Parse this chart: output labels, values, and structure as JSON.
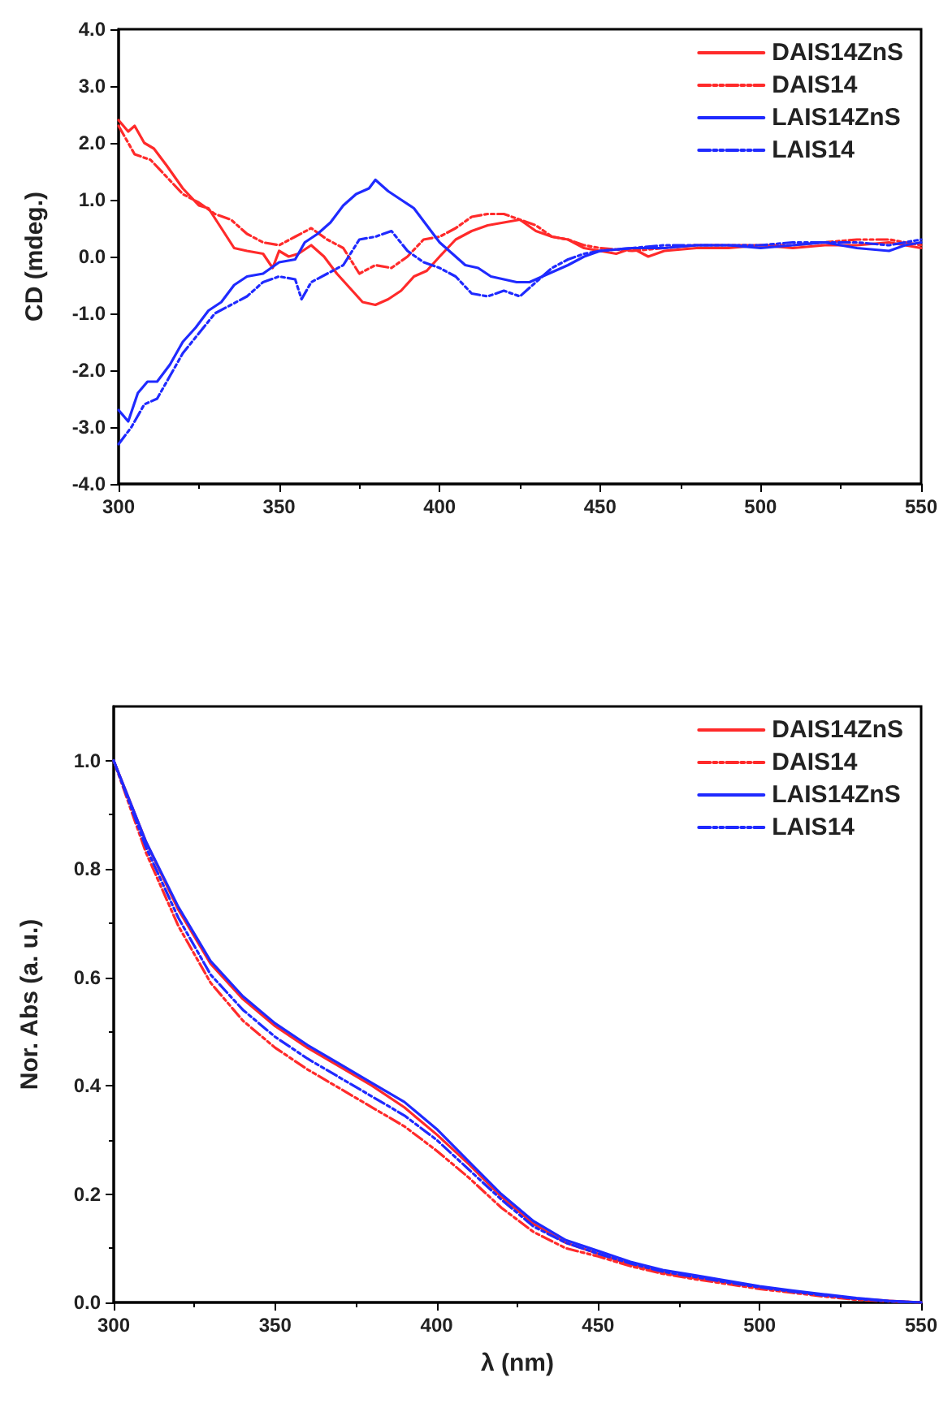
{
  "chart_data": [
    {
      "type": "line",
      "ylabel": "CD (mdeg.)",
      "xlim": [
        300,
        550
      ],
      "xticks": [
        300,
        350,
        400,
        450,
        500,
        550
      ],
      "ylim": [
        -4,
        4
      ],
      "yticks": [
        {
          "value": -4,
          "label": "-4.0"
        },
        {
          "value": -3,
          "label": "-3.0"
        },
        {
          "value": -2,
          "label": "-2.0"
        },
        {
          "value": -1,
          "label": "-1.0"
        },
        {
          "value": 0,
          "label": "0.0"
        },
        {
          "value": 1,
          "label": "1.0"
        },
        {
          "value": 2,
          "label": "2.0"
        },
        {
          "value": 3,
          "label": "3.0"
        },
        {
          "value": 4,
          "label": "4.0"
        }
      ],
      "legend": "top right",
      "marker": "none",
      "grid": false,
      "series": [
        {
          "name": "DAIS14ZnS",
          "color": "#ff2a2a",
          "line_style": "solid",
          "x": [
            300,
            303,
            305,
            308,
            311,
            315,
            320,
            325,
            328,
            332,
            336,
            340,
            345,
            348,
            350,
            353,
            356,
            360,
            364,
            368,
            372,
            376,
            380,
            384,
            388,
            392,
            396,
            400,
            405,
            410,
            415,
            420,
            425,
            430,
            435,
            440,
            445,
            450,
            455,
            460,
            465,
            470,
            480,
            490,
            500,
            510,
            520,
            530,
            540,
            550
          ],
          "values": [
            2.4,
            2.2,
            2.3,
            2.0,
            1.9,
            1.6,
            1.2,
            0.9,
            0.85,
            0.5,
            0.15,
            0.1,
            0.05,
            -0.2,
            0.1,
            0.0,
            0.05,
            0.2,
            0.0,
            -0.3,
            -0.55,
            -0.8,
            -0.85,
            -0.75,
            -0.6,
            -0.35,
            -0.25,
            0.0,
            0.3,
            0.45,
            0.55,
            0.6,
            0.65,
            0.45,
            0.35,
            0.3,
            0.15,
            0.1,
            0.05,
            0.15,
            0.0,
            0.1,
            0.15,
            0.15,
            0.2,
            0.15,
            0.2,
            0.2,
            0.25,
            0.15
          ]
        },
        {
          "name": "DAIS14",
          "color": "#ff2a2a",
          "line_style": "dashed",
          "x": [
            300,
            305,
            310,
            315,
            320,
            325,
            330,
            335,
            340,
            345,
            350,
            355,
            360,
            365,
            370,
            375,
            380,
            385,
            390,
            395,
            400,
            405,
            410,
            415,
            420,
            425,
            430,
            435,
            440,
            445,
            450,
            460,
            470,
            480,
            490,
            500,
            510,
            520,
            530,
            540,
            550
          ],
          "values": [
            2.3,
            1.8,
            1.7,
            1.4,
            1.1,
            0.95,
            0.75,
            0.65,
            0.4,
            0.25,
            0.2,
            0.35,
            0.5,
            0.3,
            0.15,
            -0.3,
            -0.15,
            -0.2,
            0.0,
            0.3,
            0.35,
            0.5,
            0.7,
            0.75,
            0.75,
            0.65,
            0.55,
            0.35,
            0.3,
            0.2,
            0.15,
            0.1,
            0.15,
            0.2,
            0.2,
            0.2,
            0.2,
            0.25,
            0.3,
            0.3,
            0.2
          ]
        },
        {
          "name": "LAIS14ZnS",
          "color": "#1f2aff",
          "line_style": "solid",
          "x": [
            300,
            303,
            306,
            309,
            312,
            316,
            320,
            324,
            328,
            332,
            336,
            340,
            345,
            350,
            355,
            358,
            362,
            366,
            370,
            374,
            378,
            380,
            384,
            388,
            392,
            396,
            400,
            404,
            408,
            412,
            416,
            420,
            424,
            428,
            432,
            436,
            440,
            445,
            450,
            460,
            470,
            480,
            490,
            500,
            510,
            520,
            530,
            540,
            545,
            550
          ],
          "values": [
            -2.7,
            -2.9,
            -2.4,
            -2.2,
            -2.2,
            -1.9,
            -1.5,
            -1.25,
            -0.95,
            -0.8,
            -0.5,
            -0.35,
            -0.3,
            -0.1,
            -0.05,
            0.25,
            0.4,
            0.6,
            0.9,
            1.1,
            1.2,
            1.35,
            1.15,
            1.0,
            0.85,
            0.55,
            0.25,
            0.05,
            -0.15,
            -0.2,
            -0.35,
            -0.4,
            -0.45,
            -0.45,
            -0.35,
            -0.25,
            -0.15,
            0.0,
            0.1,
            0.15,
            0.15,
            0.2,
            0.2,
            0.15,
            0.2,
            0.25,
            0.15,
            0.1,
            0.2,
            0.25
          ]
        },
        {
          "name": "LAIS14",
          "color": "#1f2aff",
          "line_style": "dashed",
          "x": [
            300,
            304,
            308,
            312,
            316,
            320,
            325,
            330,
            335,
            340,
            345,
            350,
            355,
            357,
            360,
            365,
            370,
            375,
            380,
            385,
            390,
            395,
            400,
            405,
            410,
            415,
            420,
            425,
            430,
            435,
            440,
            445,
            450,
            460,
            470,
            480,
            490,
            500,
            510,
            520,
            530,
            540,
            550
          ],
          "values": [
            -3.3,
            -3.0,
            -2.6,
            -2.5,
            -2.1,
            -1.7,
            -1.35,
            -1.0,
            -0.85,
            -0.7,
            -0.45,
            -0.35,
            -0.4,
            -0.75,
            -0.45,
            -0.3,
            -0.15,
            0.3,
            0.35,
            0.45,
            0.1,
            -0.1,
            -0.2,
            -0.35,
            -0.65,
            -0.7,
            -0.6,
            -0.7,
            -0.45,
            -0.2,
            -0.05,
            0.05,
            0.1,
            0.15,
            0.2,
            0.2,
            0.2,
            0.2,
            0.25,
            0.25,
            0.25,
            0.2,
            0.3
          ]
        }
      ]
    },
    {
      "type": "line",
      "xlabel": "λ (nm)",
      "ylabel": "Nor. Abs (a. u.)",
      "xlim": [
        300,
        550
      ],
      "xticks": [
        300,
        350,
        400,
        450,
        500,
        550
      ],
      "ylim": [
        0,
        1.1
      ],
      "yticks": [
        {
          "value": 0,
          "label": "0.0"
        },
        {
          "value": 0.2,
          "label": "0.2"
        },
        {
          "value": 0.4,
          "label": "0.4"
        },
        {
          "value": 0.6,
          "label": "0.6"
        },
        {
          "value": 0.8,
          "label": "0.8"
        },
        {
          "value": 1,
          "label": "1.0"
        }
      ],
      "legend": "top right",
      "marker": "none",
      "grid": false,
      "x": [
        300,
        310,
        320,
        330,
        340,
        350,
        360,
        370,
        380,
        390,
        400,
        410,
        420,
        430,
        440,
        450,
        460,
        470,
        480,
        490,
        500,
        510,
        520,
        530,
        540,
        550
      ],
      "series": [
        {
          "name": "DAIS14ZnS",
          "color": "#ff2a2a",
          "line_style": "solid",
          "values": [
            1.0,
            0.85,
            0.725,
            0.625,
            0.56,
            0.51,
            0.47,
            0.435,
            0.4,
            0.36,
            0.31,
            0.255,
            0.195,
            0.145,
            0.11,
            0.09,
            0.07,
            0.055,
            0.045,
            0.037,
            0.028,
            0.02,
            0.013,
            0.007,
            0.003,
            0
          ]
        },
        {
          "name": "DAIS14",
          "color": "#ff2a2a",
          "line_style": "dashed",
          "values": [
            1.0,
            0.83,
            0.695,
            0.59,
            0.52,
            0.47,
            0.43,
            0.395,
            0.36,
            0.325,
            0.28,
            0.23,
            0.175,
            0.13,
            0.1,
            0.085,
            0.067,
            0.053,
            0.043,
            0.034,
            0.025,
            0.018,
            0.011,
            0.005,
            0.002,
            0
          ]
        },
        {
          "name": "LAIS14ZnS",
          "color": "#1f2aff",
          "line_style": "solid",
          "values": [
            1.0,
            0.85,
            0.73,
            0.63,
            0.565,
            0.515,
            0.475,
            0.44,
            0.405,
            0.37,
            0.32,
            0.26,
            0.2,
            0.15,
            0.115,
            0.095,
            0.075,
            0.06,
            0.05,
            0.04,
            0.03,
            0.022,
            0.015,
            0.008,
            0.003,
            0
          ]
        },
        {
          "name": "LAIS14",
          "color": "#1f2aff",
          "line_style": "dashed",
          "values": [
            1.0,
            0.84,
            0.71,
            0.605,
            0.54,
            0.49,
            0.45,
            0.415,
            0.38,
            0.345,
            0.3,
            0.245,
            0.19,
            0.14,
            0.11,
            0.09,
            0.072,
            0.057,
            0.047,
            0.037,
            0.028,
            0.02,
            0.013,
            0.007,
            0.002,
            0
          ]
        }
      ]
    }
  ]
}
